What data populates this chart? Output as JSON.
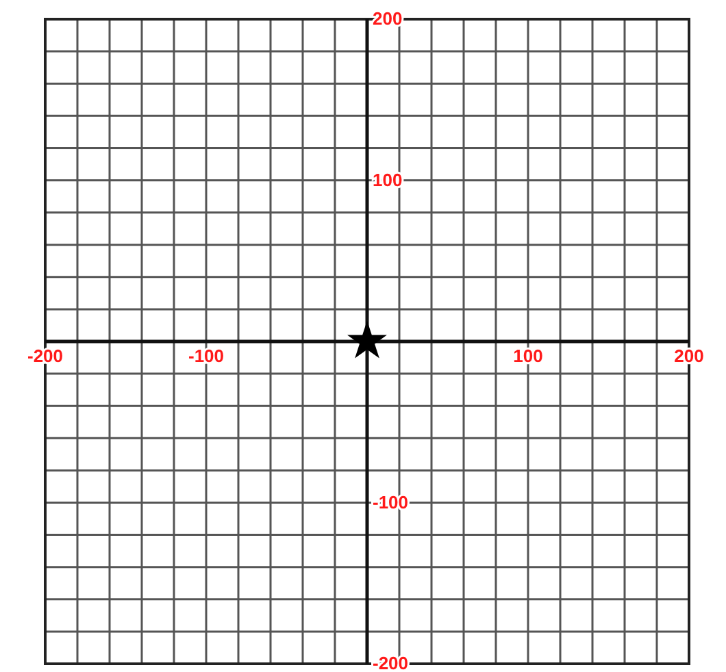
{
  "chart_data": {
    "type": "scatter",
    "x": [
      0
    ],
    "values": [
      0
    ],
    "color": "#000000",
    "marker": "star",
    "xlim": [
      -200,
      200
    ],
    "ylim": [
      -200,
      200
    ],
    "grid": true,
    "xticks": [
      -200,
      {
        "value": -180,
        "label": null
      },
      {
        "value": -160,
        "label": null
      },
      {
        "value": -140,
        "label": null
      },
      {
        "value": -120,
        "label": null
      },
      -100,
      {
        "value": -80,
        "label": null
      },
      {
        "value": -60,
        "label": null
      },
      {
        "value": -40,
        "label": null
      },
      {
        "value": -20,
        "label": null
      },
      {
        "value": 0,
        "label": null
      },
      {
        "value": 20,
        "label": null
      },
      {
        "value": 40,
        "label": null
      },
      {
        "value": 60,
        "label": null
      },
      {
        "value": 80,
        "label": null
      },
      100,
      {
        "value": 120,
        "label": null
      },
      {
        "value": 140,
        "label": null
      },
      {
        "value": 160,
        "label": null
      },
      {
        "value": 180,
        "label": null
      },
      200
    ],
    "yticks": [
      -200,
      {
        "value": -180,
        "label": null
      },
      {
        "value": -160,
        "label": null
      },
      {
        "value": -140,
        "label": null
      },
      {
        "value": -120,
        "label": null
      },
      -100,
      {
        "value": -80,
        "label": null
      },
      {
        "value": -60,
        "label": null
      },
      {
        "value": -40,
        "label": null
      },
      {
        "value": -20,
        "label": null
      },
      {
        "value": 0,
        "label": null
      },
      {
        "value": 20,
        "label": null
      },
      {
        "value": 40,
        "label": null
      },
      {
        "value": 60,
        "label": null
      },
      {
        "value": 80,
        "label": null
      },
      100,
      {
        "value": 120,
        "label": null
      },
      {
        "value": 140,
        "label": null
      },
      {
        "value": 160,
        "label": null
      },
      {
        "value": 180,
        "label": null
      },
      200
    ]
  }
}
